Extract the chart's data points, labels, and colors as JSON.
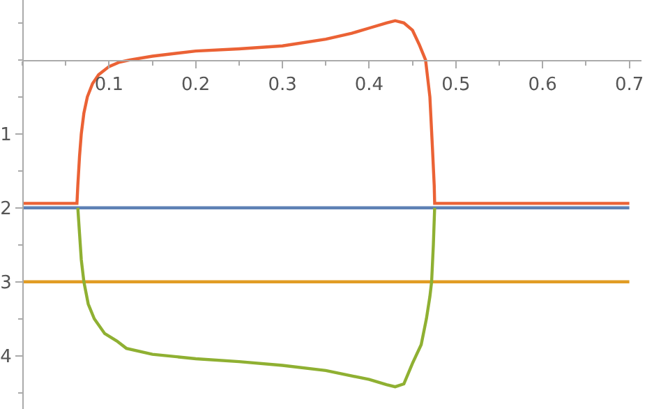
{
  "chart_data": {
    "type": "line",
    "xlim": [
      0,
      0.714
    ],
    "ylim": [
      -4.72,
      0.81
    ],
    "xticks": [
      0.1,
      0.2,
      0.3,
      0.4,
      0.5,
      0.6,
      0.7
    ],
    "yticks": [
      {
        "value": -1,
        "label": "1"
      },
      {
        "value": -2,
        "label": "2"
      },
      {
        "value": -3,
        "label": "3"
      },
      {
        "value": -4,
        "label": "4"
      }
    ],
    "marker": "none",
    "line_style": "solid",
    "series": [
      {
        "color": "#eb6235",
        "x": [
          0,
          0.063,
          0.064,
          0.066,
          0.068,
          0.071,
          0.075,
          0.081,
          0.088,
          0.1,
          0.112,
          0.124,
          0.15,
          0.2,
          0.25,
          0.3,
          0.35,
          0.38,
          0.4,
          0.42,
          0.43,
          0.44,
          0.45,
          0.458,
          0.465,
          0.47,
          0.473,
          0.475,
          0.4755,
          0.6,
          0.7
        ],
        "values": [
          -1.94,
          -1.94,
          -1.7,
          -1.3,
          -1.0,
          -0.72,
          -0.5,
          -0.32,
          -0.2,
          -0.09,
          -0.03,
          0.0,
          0.05,
          0.12,
          0.15,
          0.19,
          0.28,
          0.36,
          0.43,
          0.5,
          0.53,
          0.5,
          0.4,
          0.2,
          0.0,
          -0.5,
          -1.2,
          -1.7,
          -1.94,
          -1.94,
          -1.94
        ]
      },
      {
        "color": "#5e81b5",
        "x": [
          0,
          0.7
        ],
        "values": [
          -2.0,
          -2.0
        ]
      },
      {
        "color": "#e19c24",
        "x": [
          0,
          0.7
        ],
        "values": [
          -3.0,
          -3.0
        ]
      },
      {
        "color": "#8fb032",
        "x": [
          0.064,
          0.066,
          0.068,
          0.071,
          0.076,
          0.083,
          0.095,
          0.109,
          0.12,
          0.15,
          0.2,
          0.25,
          0.3,
          0.35,
          0.4,
          0.42,
          0.43,
          0.44,
          0.45,
          0.46,
          0.466,
          0.47,
          0.472,
          0.474,
          0.4755
        ],
        "values": [
          -2.0,
          -2.35,
          -2.7,
          -3.0,
          -3.3,
          -3.5,
          -3.7,
          -3.8,
          -3.9,
          -3.98,
          -4.04,
          -4.08,
          -4.13,
          -4.2,
          -4.32,
          -4.39,
          -4.42,
          -4.38,
          -4.1,
          -3.85,
          -3.5,
          -3.2,
          -3.0,
          -2.5,
          -2.0
        ]
      }
    ]
  }
}
